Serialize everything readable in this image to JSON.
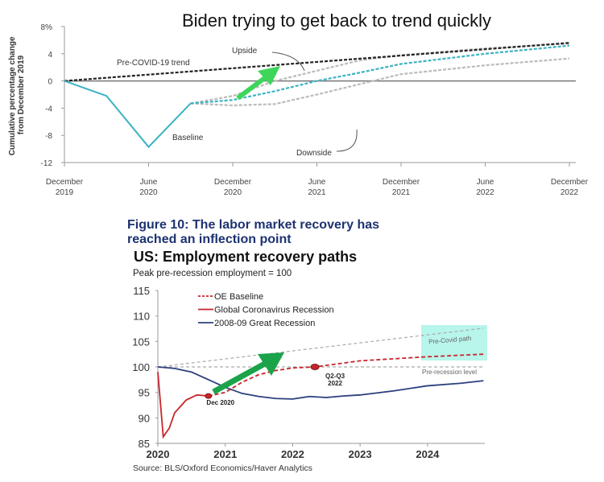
{
  "chart_data": [
    {
      "type": "line",
      "title": "Biden trying to get back to trend quickly",
      "xlabel": "",
      "ylabel": "Cumulative percentage change from December 2019",
      "ylabel_lines": [
        "Cumulative percentage change",
        "from December 2019"
      ],
      "x_unit": "months since December 2019",
      "xlim": [
        0,
        36
      ],
      "ylim": [
        -12,
        8
      ],
      "yticks": [
        8,
        4,
        0,
        -4,
        -8,
        -12
      ],
      "ytick_labels": [
        "8%",
        "4",
        "0",
        "-4",
        "-8",
        "-12"
      ],
      "xticks": [
        0,
        6,
        12,
        18,
        24,
        30,
        36
      ],
      "xtick_labels": [
        [
          "December",
          "2019"
        ],
        [
          "June",
          "2020"
        ],
        [
          "December",
          "2020"
        ],
        [
          "June",
          "2021"
        ],
        [
          "December",
          "2021"
        ],
        [
          "June",
          "2022"
        ],
        [
          "December",
          "2022"
        ]
      ],
      "series": [
        {
          "name": "Pre-COVID-19 trend",
          "style": "dashed",
          "color": "#222222",
          "x": [
            0,
            36
          ],
          "y": [
            0,
            5.6
          ]
        },
        {
          "name": "Baseline",
          "style": "solid",
          "color": "#3bb3c3",
          "x": [
            0,
            3,
            6,
            9
          ],
          "y": [
            0,
            -2.2,
            -9.7,
            -3.3
          ]
        },
        {
          "name": "Baseline projection",
          "style": "dashed",
          "color": "#3bb3c3",
          "x": [
            9,
            12,
            15,
            18,
            21,
            24,
            30,
            36
          ],
          "y": [
            -3.3,
            -2.8,
            -1.5,
            0,
            1.2,
            2.5,
            4.0,
            5.2
          ]
        },
        {
          "name": "Upside",
          "style": "dashed",
          "color": "#bbbbbb",
          "x": [
            9,
            12,
            15,
            18,
            21,
            24,
            30,
            36
          ],
          "y": [
            -3.3,
            -2.2,
            0,
            1.5,
            3.0,
            3.8,
            4.8,
            5.5
          ]
        },
        {
          "name": "Downside",
          "style": "dashed",
          "color": "#bbbbbb",
          "x": [
            9,
            12,
            15,
            18,
            21,
            24,
            30,
            36
          ],
          "y": [
            -3.3,
            -3.6,
            -3.4,
            -2.0,
            -0.5,
            1.0,
            2.3,
            3.3
          ]
        }
      ],
      "annotations": [
        "Pre-COVID-19 trend",
        "Upside",
        "Downside",
        "Baseline"
      ],
      "arrow_color": "#3dd65a"
    },
    {
      "type": "line",
      "figure_caption": [
        "Figure 10: The labor market recovery has",
        "reached an inflection point"
      ],
      "title": "US: Employment recovery paths",
      "subtitle": "Peak pre-recession employment = 100",
      "source": "Source: BLS/Oxford Economics/Haver Analytics",
      "xlim": [
        2020,
        2024.85
      ],
      "ylim": [
        85,
        115
      ],
      "yticks": [
        115,
        110,
        105,
        100,
        95,
        90,
        85
      ],
      "xticks": [
        2020,
        2021,
        2022,
        2023,
        2024
      ],
      "legend": [
        "OE Baseline",
        "Global Coronavirus Recession",
        "2008-09 Great Recession"
      ],
      "legend_position": "top-left",
      "series": [
        {
          "name": "OE Baseline",
          "style": "dashed",
          "color": "#c8252b",
          "x": [
            2020.75,
            2021,
            2021.25,
            2021.5,
            2021.75,
            2022,
            2022.33,
            2023,
            2024,
            2024.83
          ],
          "y": [
            94.3,
            95,
            97,
            98.5,
            99.3,
            99.8,
            100,
            101.2,
            102,
            102.5
          ]
        },
        {
          "name": "Global Coronavirus Recession",
          "style": "solid",
          "color": "#c8252b",
          "x": [
            2020,
            2020.08,
            2020.17,
            2020.25,
            2020.42,
            2020.58,
            2020.75
          ],
          "y": [
            99,
            86.3,
            88,
            91,
            93.5,
            94.5,
            94.3
          ]
        },
        {
          "name": "2008-09 Great Recession",
          "style": "solid",
          "color": "#2b3f7e",
          "x": [
            2020,
            2020.25,
            2020.5,
            2020.75,
            2021,
            2021.25,
            2021.5,
            2021.75,
            2022,
            2022.25,
            2022.5,
            2022.75,
            2023,
            2023.5,
            2024,
            2024.5,
            2024.83
          ],
          "y": [
            100,
            99.7,
            99,
            97.5,
            96,
            94.8,
            94.2,
            93.8,
            93.7,
            94.2,
            94,
            94.3,
            94.5,
            95.3,
            96.3,
            96.8,
            97.3
          ]
        },
        {
          "name": "Pre-Covid path",
          "style": "dashed",
          "color": "#aaaaaa",
          "x": [
            2020,
            2024.83
          ],
          "y": [
            100,
            107.6
          ]
        },
        {
          "name": "Pre-recession level",
          "style": "dashed",
          "color": "#aaaaaa",
          "x": [
            2020,
            2024.83
          ],
          "y": [
            100,
            100
          ]
        }
      ],
      "markers": [
        {
          "label": "Dec 2020",
          "x": 2020.75,
          "y": 94.3
        },
        {
          "label": "Q2-Q3 2022",
          "label_lines": [
            "Q2-Q3",
            "2022"
          ],
          "x": 2022.33,
          "y": 100
        }
      ],
      "annotations": [
        "Pre-Covid path",
        "Pre-recession level"
      ],
      "highlight_color": "#b8f5ea",
      "arrow_color": "#1aa34a"
    }
  ]
}
